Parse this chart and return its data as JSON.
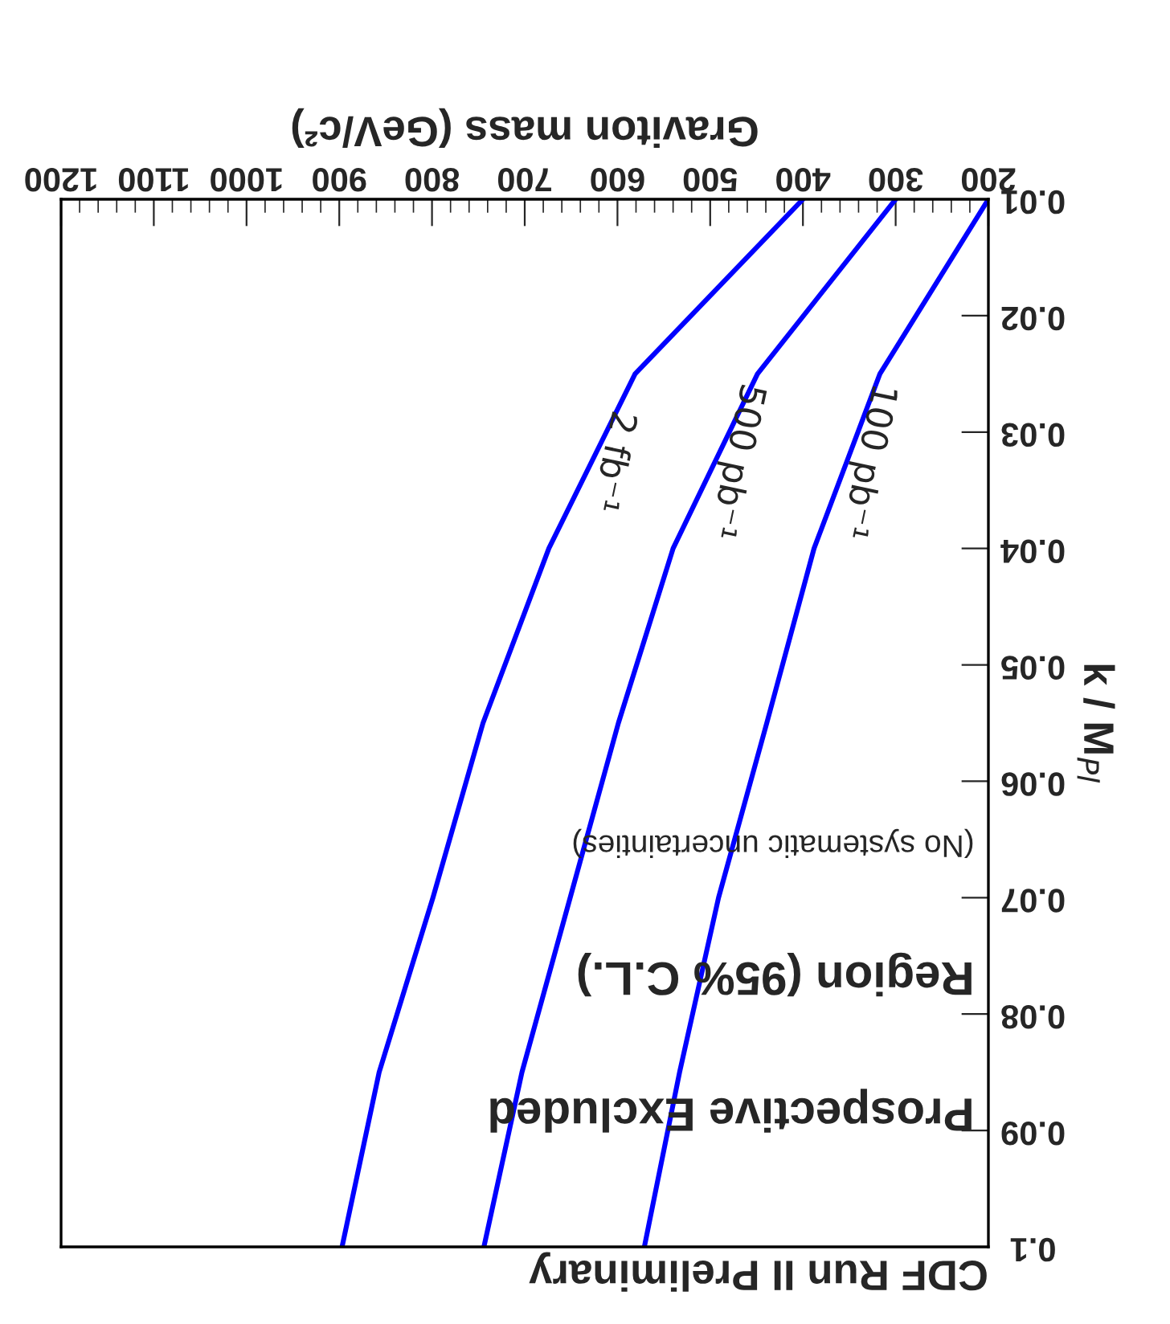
{
  "chart_data": {
    "type": "line",
    "title": "CDF Run II Preliminary",
    "xlabel": "Graviton mass (GeV/c²)",
    "ylabel": "k / M$_{Pl}$",
    "annotations": [
      "Prospective Excluded",
      "Region (95% C.L.)",
      "(No systematic uncertainties)"
    ],
    "series": [
      {
        "name": "2 fb⁻¹",
        "color": "#0000ff",
        "x": [
          400,
          581,
          674,
          745,
          799,
          857,
          897
        ],
        "values": [
          0.01,
          0.025,
          0.04,
          0.055,
          0.07,
          0.085,
          0.1
        ]
      },
      {
        "name": "500 pb⁻¹",
        "color": "#0000ff",
        "x": [
          300,
          449,
          540,
          599,
          651,
          703,
          744
        ],
        "values": [
          0.01,
          0.025,
          0.04,
          0.055,
          0.07,
          0.085,
          0.1
        ]
      },
      {
        "name": "100 pb⁻¹",
        "color": "#0000ff",
        "x": [
          200,
          317,
          388,
          439,
          491,
          533,
          571
        ],
        "values": [
          0.01,
          0.025,
          0.04,
          0.055,
          0.07,
          0.085,
          0.1
        ]
      }
    ],
    "xlim": [
      1200,
      200
    ],
    "xticks": [
      200,
      300,
      400,
      500,
      600,
      700,
      800,
      900,
      1000,
      1100,
      1200
    ],
    "ylim": [
      0.1,
      0.01
    ],
    "yticks": [
      0.01,
      0.02,
      0.03,
      0.04,
      0.05,
      0.06,
      0.07,
      0.08,
      0.09,
      {
        "value": 0.1,
        "label": "0.1"
      }
    ],
    "grid": false,
    "legend": false,
    "marker": "none",
    "line_style": "solid"
  }
}
